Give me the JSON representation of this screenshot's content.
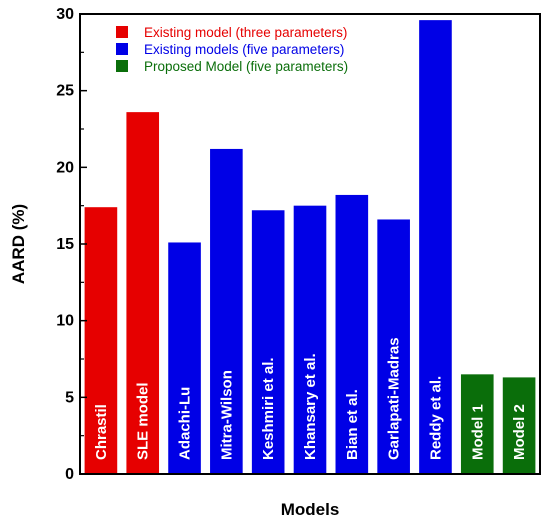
{
  "chart_data": {
    "type": "bar",
    "xlabel": "Models",
    "ylabel": "AARD (%)",
    "ylim": [
      0,
      30
    ],
    "yticks": [
      0,
      5,
      10,
      15,
      20,
      25,
      30
    ],
    "grid": false,
    "legend_position": "top-left",
    "legend": [
      {
        "label": "Existing model (three parameters)",
        "color": "#e60000"
      },
      {
        "label": "Existing models (five parameters)",
        "color": "#0000e6"
      },
      {
        "label": "Proposed Model (five parameters)",
        "color": "#0a6e0a"
      }
    ],
    "categories": [
      "Chrastil",
      "SLE model",
      "Adachi-Lu",
      "Mitra-Wilson",
      "Keshmiri et al.",
      "Khansary et al.",
      "Bian et al.",
      "Garlapati-Madras",
      "Reddy et al.",
      "Model 1",
      "Model 2"
    ],
    "values": [
      17.4,
      23.6,
      15.1,
      21.2,
      17.2,
      17.5,
      18.2,
      16.6,
      29.6,
      6.5,
      6.3
    ],
    "groups": [
      0,
      0,
      1,
      1,
      1,
      1,
      1,
      1,
      1,
      2,
      2
    ]
  }
}
